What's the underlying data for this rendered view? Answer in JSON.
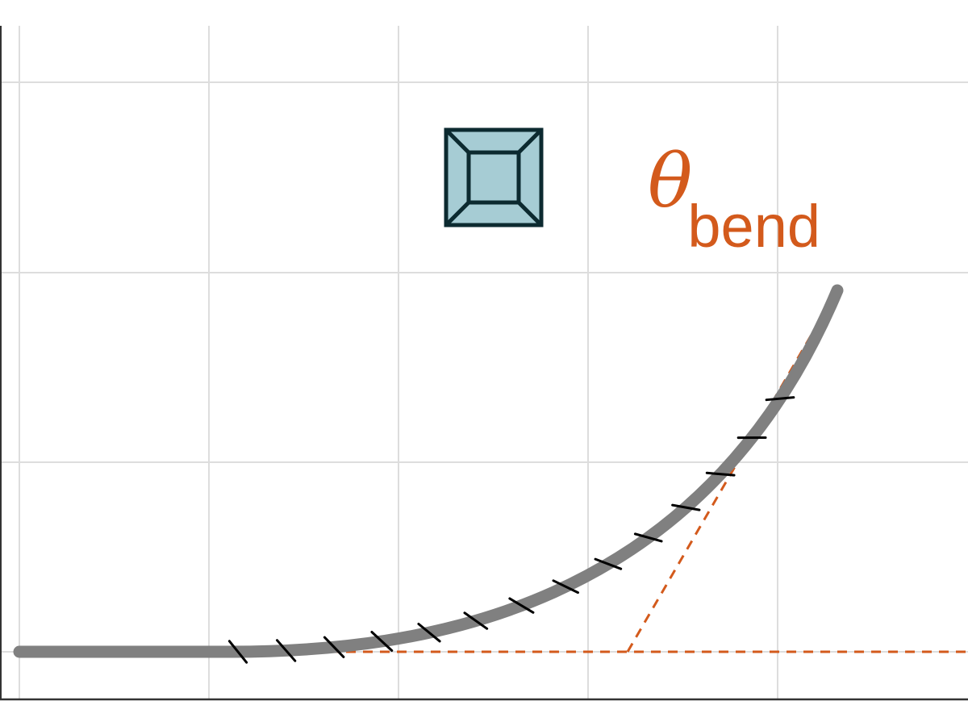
{
  "figure": {
    "angle_symbol": "θ",
    "angle_subscript": "bend"
  },
  "colors": {
    "background": "#ffffff",
    "grid": "#dddddd",
    "axis": "#333333",
    "fiber": "#808080",
    "ticks": "#000000",
    "reference_lines": "#d35a1c",
    "label": "#d35a1c",
    "detector_fill": "#a6ccd4",
    "detector_stroke": "#0c2a30"
  },
  "icons": {
    "detector": "square-frame-icon"
  }
}
